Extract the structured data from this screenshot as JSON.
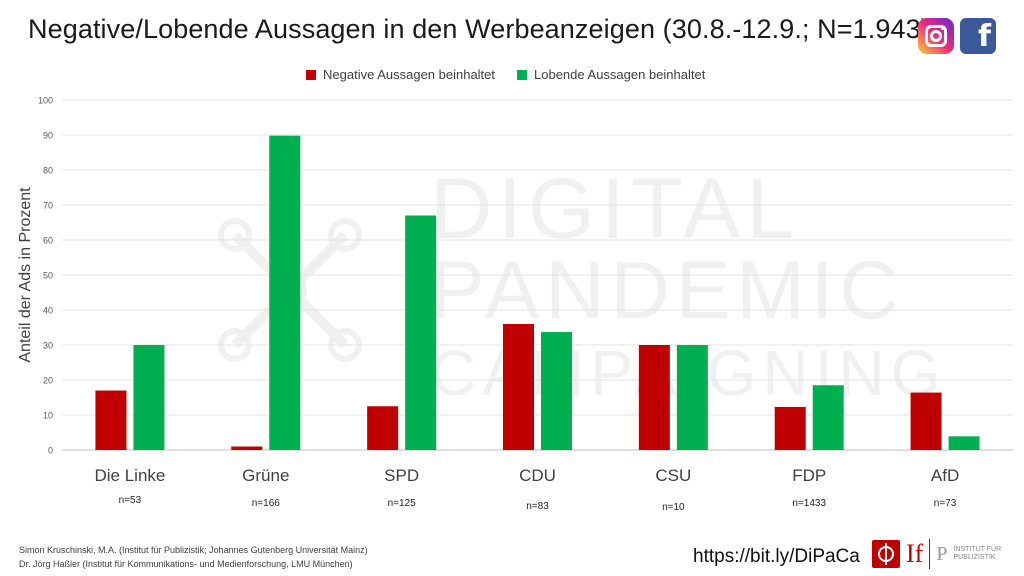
{
  "title": "Negative/Lobende Aussagen in den Werbeanzeigen (30.8.-12.9.; N=1.943)",
  "social": {
    "icons": [
      "instagram-icon",
      "facebook-icon"
    ],
    "fb_glyph": "f"
  },
  "footer": {
    "author1": "Simon Kruschinski, M.A. (Institut für Publizistik; Johannes Gutenberg Universität Mainz)",
    "author2": "Dr. Jörg Haßler (Institut für Kommunikations- und Medienforschung, LMU München)",
    "url": "https://bit.ly/DiPaCa",
    "logo_text": "If",
    "logo_p": "P",
    "logo_caption_1": "INSTITUT FÜR",
    "logo_caption_2": "PUBLIZISTIK"
  },
  "watermark": [
    "DIGITAL",
    "PANDEMIC",
    "CAMPAIGNING"
  ],
  "colors": {
    "negative": "#c00000",
    "positive": "#00b050"
  },
  "chart_data": {
    "type": "bar",
    "categories": [
      "Die Linke",
      "Grüne",
      "SPD",
      "CDU",
      "CSU",
      "FDP",
      "AfD"
    ],
    "sample_sizes": [
      "n=53",
      "n=166",
      "n=125",
      "n=83",
      "n=10",
      "n=1433",
      "n=73"
    ],
    "series": [
      {
        "name": "Negative Aussagen beinhaltet",
        "color": "#c00000",
        "values": [
          17,
          1,
          12.5,
          36,
          30,
          12.3,
          16.4
        ]
      },
      {
        "name": "Lobende Aussagen beinhaltet",
        "color": "#00b050",
        "values": [
          30,
          89.8,
          67,
          33.7,
          30,
          18.5,
          3.9
        ]
      }
    ],
    "ylabel": "Anteil der Ads in Prozent",
    "ylim": [
      0,
      100
    ],
    "yticks": [
      0,
      10,
      20,
      30,
      40,
      50,
      60,
      70,
      80,
      90,
      100
    ],
    "grid": true,
    "legend_position": "top-center"
  }
}
